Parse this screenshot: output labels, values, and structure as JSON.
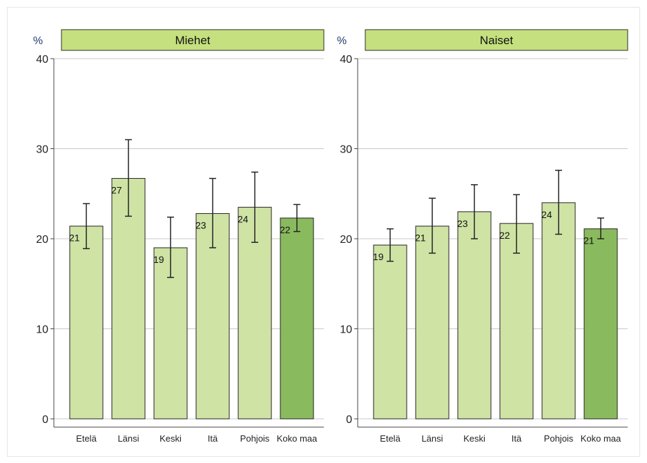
{
  "chart_data": [
    {
      "type": "bar",
      "title": "Miehet",
      "ylabel": "%",
      "ylim": [
        0,
        40
      ],
      "yticks": [
        0,
        10,
        20,
        30,
        40
      ],
      "categories": [
        "Etelä",
        "Länsi",
        "Keski",
        "Itä",
        "Pohjois",
        "Koko maa"
      ],
      "values": [
        21.4,
        26.7,
        19.0,
        22.8,
        23.5,
        22.3
      ],
      "ci_low": [
        18.9,
        22.5,
        15.7,
        19.0,
        19.6,
        20.8
      ],
      "ci_high": [
        23.9,
        31.0,
        22.4,
        26.7,
        27.4,
        23.8
      ],
      "labels": [
        "21",
        "27",
        "19",
        "23",
        "24",
        "22"
      ],
      "highlight_index": 5,
      "grid": true
    },
    {
      "type": "bar",
      "title": "Naiset",
      "ylabel": "%",
      "ylim": [
        0,
        40
      ],
      "yticks": [
        0,
        10,
        20,
        30,
        40
      ],
      "categories": [
        "Etelä",
        "Länsi",
        "Keski",
        "Itä",
        "Pohjois",
        "Koko maa"
      ],
      "values": [
        19.3,
        21.4,
        23.0,
        21.7,
        24.0,
        21.1
      ],
      "ci_low": [
        17.5,
        18.4,
        20.0,
        18.4,
        20.5,
        20.0
      ],
      "ci_high": [
        21.1,
        24.5,
        26.0,
        24.9,
        27.6,
        22.3
      ],
      "labels": [
        "19",
        "21",
        "23",
        "22",
        "24",
        "21"
      ],
      "highlight_index": 5,
      "grid": true
    }
  ],
  "colors": {
    "bar": "#cfe3a5",
    "bar_highlight": "#8aba5e",
    "title_band": "#c5e07e",
    "axis_label": "#1f3a6e",
    "grid": "#c8c8c8",
    "bar_stroke": "#222222",
    "error_bar": "#222222"
  }
}
